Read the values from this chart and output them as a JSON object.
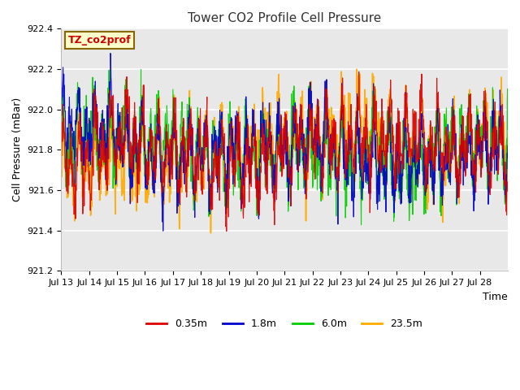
{
  "title": "Tower CO2 Profile Cell Pressure",
  "ylabel": "Cell Pressure (mBar)",
  "xlabel": "Time",
  "ylim": [
    921.2,
    922.4
  ],
  "yticks": [
    921.2,
    921.4,
    921.6,
    921.8,
    922.0,
    922.2,
    922.4
  ],
  "xtick_labels": [
    "Jul 13",
    "Jul 14",
    "Jul 15",
    "Jul 16",
    "Jul 17",
    "Jul 18",
    "Jul 19",
    "Jul 20",
    "Jul 21",
    "Jul 22",
    "Jul 23",
    "Jul 24",
    "Jul 25",
    "Jul 26",
    "Jul 27",
    "Jul 28"
  ],
  "series_colors": [
    "#dd0000",
    "#0000cc",
    "#00cc00",
    "#ffaa00"
  ],
  "series_labels": [
    "0.35m",
    "1.8m",
    "6.0m",
    "23.5m"
  ],
  "annotation_text": "TZ_co2prof",
  "annotation_color": "#cc0000",
  "annotation_bg": "#ffffcc",
  "annotation_edge": "#886600",
  "plot_bg": "#e8e8e8",
  "fig_bg": "#ffffff",
  "grid_color": "#ffffff",
  "n_days": 16,
  "pts_per_day": 96,
  "base_pressure": 921.8,
  "seed": 42
}
